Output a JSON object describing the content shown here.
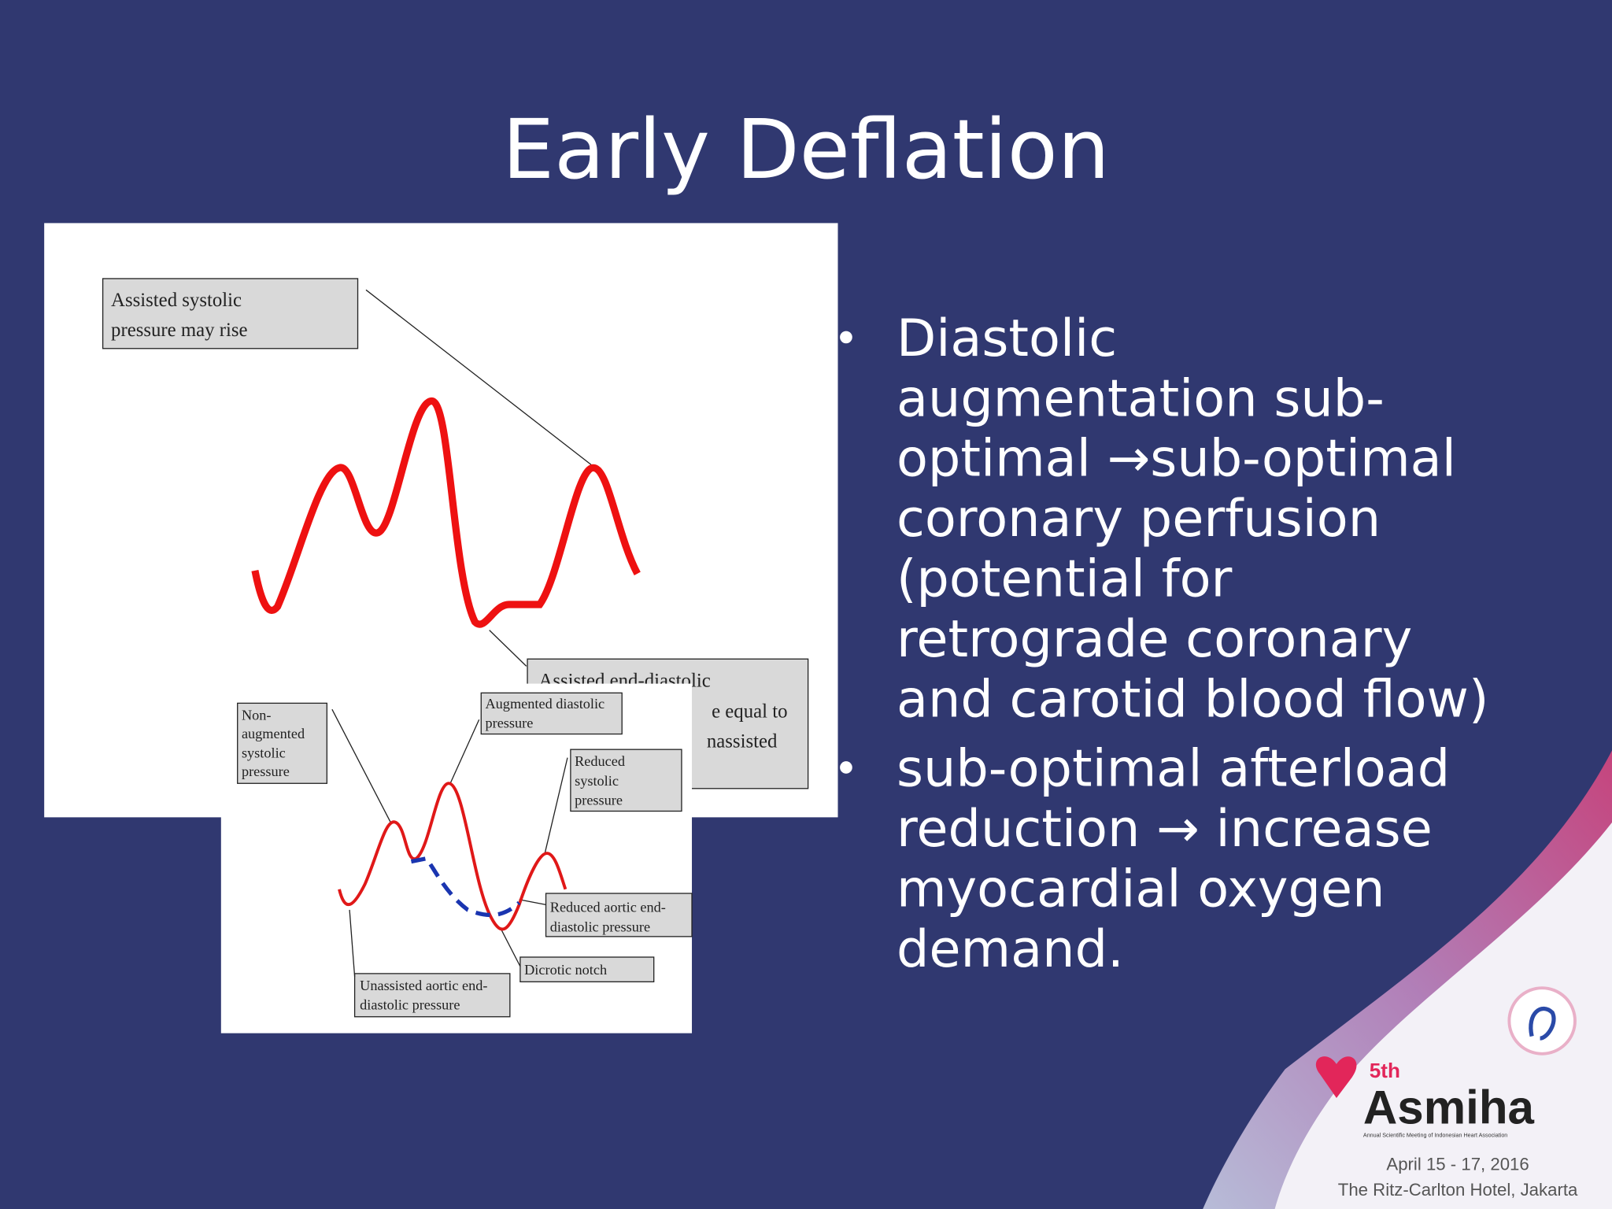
{
  "slide": {
    "title": "Early Deflation",
    "figure_top": {
      "systolic_label": [
        "Assisted systolic",
        "pressure may rise"
      ],
      "diastolic_label": [
        "Assisted end-diastolic",
        "e equal to",
        "nassisted"
      ]
    },
    "figure_bottom": {
      "non_augmented": [
        "Non-",
        "augmented",
        "systolic",
        "pressure"
      ],
      "augmented_diastolic": [
        "Augmented diastolic",
        "pressure"
      ],
      "reduced_systolic": [
        "Reduced",
        "systolic",
        "pressure"
      ],
      "reduced_aortic": [
        "Reduced aortic end-",
        "diastolic pressure"
      ],
      "dicrotic_notch": "Dicrotic notch",
      "unassisted_aortic": [
        "Unassisted aortic end-",
        "diastolic pressure"
      ]
    },
    "bullets": [
      [
        "Diastolic",
        "augmentation sub-",
        "optimal →sub-optimal",
        "coronary perfusion",
        "(potential for",
        "retrograde coronary",
        "and carotid blood flow)"
      ],
      [
        "sub-optimal afterload",
        "reduction → increase",
        "myocardial oxygen",
        "demand."
      ]
    ],
    "logo": {
      "edition": "5th",
      "name": "Asmiha",
      "tagline": "Annual Scientific Meeting of Indonesian Heart Association",
      "dates": "April 15 - 17, 2016",
      "venue": "The Ritz-Carlton Hotel, Jakarta"
    }
  }
}
